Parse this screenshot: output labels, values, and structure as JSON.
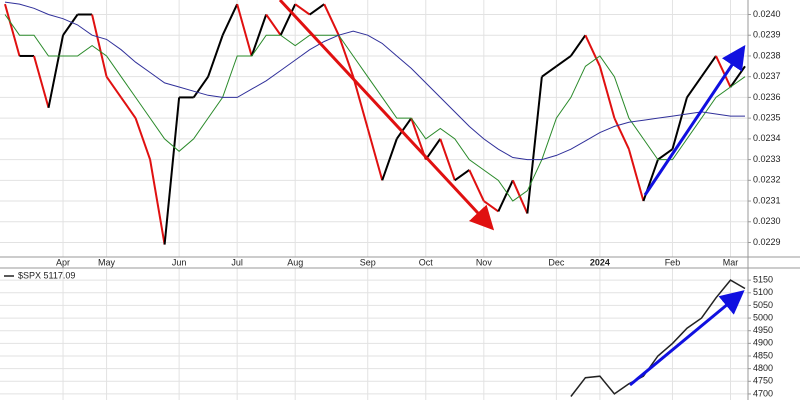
{
  "chart_data": [
    {
      "type": "line",
      "categories": [
        null,
        null,
        null,
        null,
        "Apr",
        null,
        null,
        "May",
        null,
        null,
        null,
        null,
        "Jun",
        null,
        null,
        null,
        "Jul",
        null,
        null,
        null,
        "Aug",
        null,
        null,
        null,
        null,
        "Sep",
        null,
        null,
        null,
        "Oct",
        null,
        null,
        null,
        "Nov",
        null,
        null,
        null,
        null,
        "Dec",
        null,
        null,
        "2024",
        null,
        null,
        null,
        null,
        "Feb",
        null,
        null,
        null,
        "Mar",
        null
      ],
      "series": [
        {
          "color": "#000000",
          "up_color": "#000000",
          "down_color": "#e01010",
          "values": [
            0.02405,
            0.0238,
            0.0238,
            0.02355,
            0.0239,
            0.024,
            0.024,
            0.0237,
            0.0236,
            0.0235,
            0.0233,
            0.02289,
            0.0236,
            0.0236,
            0.0237,
            0.0239,
            0.02405,
            0.0238,
            0.024,
            0.0239,
            0.02405,
            0.024,
            0.02405,
            0.0239,
            0.0237,
            0.02345,
            0.0232,
            0.0234,
            0.0235,
            0.0233,
            0.0234,
            0.0232,
            0.02325,
            0.0231,
            0.02305,
            0.0232,
            0.02304,
            0.0237,
            0.02375,
            0.0238,
            0.0239,
            0.02375,
            0.0235,
            0.02335,
            0.0231,
            0.0233,
            0.02335,
            0.0236,
            0.0237,
            0.0238,
            0.02365,
            0.02375
          ]
        },
        {
          "color": "#2a8a2a",
          "values": [
            0.024,
            0.0239,
            0.0239,
            0.0238,
            0.0238,
            0.0238,
            0.02385,
            0.0238,
            0.0237,
            0.0236,
            0.0235,
            0.0234,
            0.02334,
            0.0234,
            0.0235,
            0.0236,
            0.0238,
            0.0238,
            0.0239,
            0.0239,
            0.02385,
            0.0239,
            0.0239,
            0.0239,
            0.0238,
            0.0237,
            0.0236,
            0.0235,
            0.0235,
            0.0234,
            0.02345,
            0.0234,
            0.0233,
            0.02325,
            0.0232,
            0.0231,
            0.02315,
            0.0233,
            0.0235,
            0.0236,
            0.02375,
            0.0238,
            0.0237,
            0.0235,
            0.0234,
            0.0233,
            0.0233,
            0.0234,
            0.0235,
            0.0236,
            0.02365,
            0.0237
          ]
        },
        {
          "color": "#30309a",
          "values": [
            0.02406,
            0.02405,
            0.02403,
            0.024,
            0.02398,
            0.02395,
            0.0239,
            0.02388,
            0.02383,
            0.02377,
            0.02372,
            0.02367,
            0.02365,
            0.02363,
            0.02361,
            0.0236,
            0.0236,
            0.02364,
            0.02368,
            0.02373,
            0.02378,
            0.02383,
            0.02387,
            0.0239,
            0.02392,
            0.0239,
            0.02386,
            0.0238,
            0.02374,
            0.02367,
            0.0236,
            0.02353,
            0.02346,
            0.0234,
            0.02335,
            0.02331,
            0.0233,
            0.0233,
            0.02332,
            0.02335,
            0.02339,
            0.02343,
            0.02346,
            0.02348,
            0.02349,
            0.0235,
            0.02351,
            0.02352,
            0.02353,
            0.02352,
            0.02351,
            0.02351
          ]
        }
      ],
      "ylim": [
        0.02283,
        0.02407
      ],
      "yticks": [
        {
          "value": 0.024,
          "label": "0.0240"
        },
        0.0239,
        0.0238,
        0.0237,
        0.0236,
        0.0235,
        0.0234,
        0.0233,
        0.0232,
        0.0231,
        {
          "value": 0.023,
          "label": "0.0230"
        },
        0.0229
      ],
      "grid": true
    },
    {
      "type": "line",
      "series": [
        {
          "name": "$SPX 5117.09",
          "color": "#222222",
          "values": [
            null,
            null,
            null,
            null,
            null,
            null,
            null,
            null,
            null,
            null,
            null,
            null,
            null,
            null,
            null,
            null,
            null,
            null,
            null,
            null,
            null,
            null,
            null,
            null,
            null,
            null,
            null,
            null,
            null,
            null,
            null,
            null,
            null,
            null,
            null,
            null,
            null,
            null,
            null,
            4690,
            4764,
            4770,
            4700,
            4740,
            4770,
            4850,
            4900,
            4960,
            5000,
            5080,
            5150,
            5117.09
          ]
        }
      ],
      "ylim": [
        4676,
        5198
      ],
      "yticks": [
        5150,
        5100,
        5050,
        5000,
        4950,
        4900,
        4850,
        4800,
        4750,
        4700
      ],
      "grid": true
    }
  ]
}
